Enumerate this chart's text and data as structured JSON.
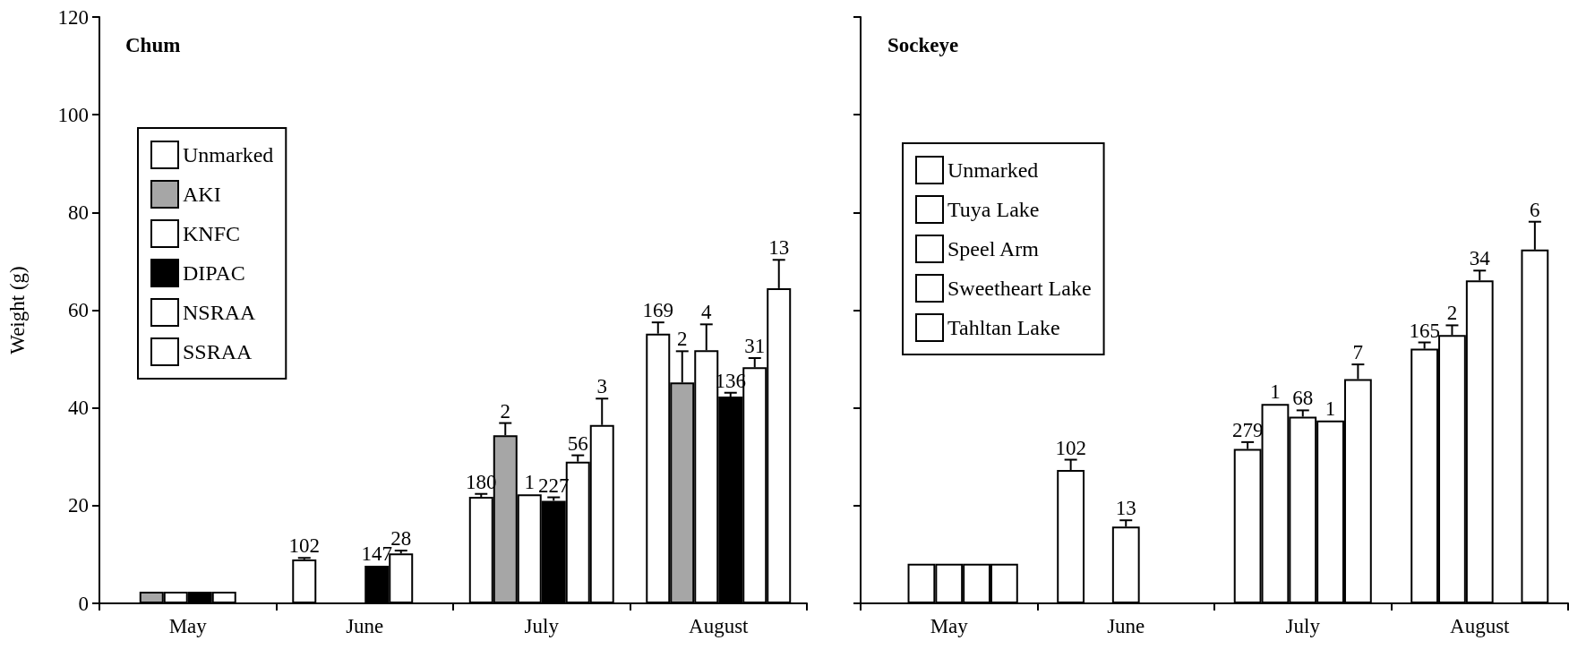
{
  "chart_data": [
    {
      "type": "bar",
      "title": "Chum",
      "ylabel": "Weight (g)",
      "categories": [
        "May",
        "June",
        "July",
        "August"
      ],
      "ylim": [
        0,
        120
      ],
      "yticks": [
        0,
        20,
        40,
        60,
        80,
        100,
        120
      ],
      "grid": false,
      "legend": "top left",
      "series": [
        {
          "name": "Unmarked",
          "color": "#ffffff",
          "values": [
            null,
            9.0,
            21.8,
            55.2
          ],
          "errors": [
            null,
            0.3,
            0.6,
            2.3
          ]
        },
        {
          "name": "AKI",
          "color": "#a6a6a6",
          "values": [
            2.4,
            null,
            34.4,
            45.2
          ],
          "errors": [
            null,
            null,
            2.5,
            6.4
          ]
        },
        {
          "name": "KNFC",
          "color": "#ffffff",
          "values": [
            2.4,
            null,
            22.3,
            51.8
          ],
          "errors": [
            null,
            null,
            null,
            5.3
          ]
        },
        {
          "name": "DIPAC",
          "color": "#000000",
          "values": [
            2.4,
            7.7,
            21.0,
            42.3
          ],
          "errors": [
            null,
            null,
            0.7,
            0.8
          ]
        },
        {
          "name": "NSRAA",
          "color": "#ffffff",
          "values": [
            2.4,
            10.2,
            29.0,
            48.3
          ],
          "errors": [
            null,
            0.6,
            1.3,
            1.9
          ]
        },
        {
          "name": "SSRAA",
          "color": "#ffffff",
          "values": [
            null,
            null,
            36.5,
            64.5
          ],
          "errors": [
            null,
            null,
            5.4,
            5.8
          ]
        }
      ],
      "annotations": [
        {
          "text": "102",
          "y": 9.0
        },
        {
          "text": "147",
          "y": 7.7
        },
        {
          "text": "28",
          "y": 10.2
        },
        {
          "text": "180",
          "y": 21.8
        },
        {
          "text": "2",
          "y": 34.4
        },
        {
          "text": "1",
          "y": 22.3
        },
        {
          "text": "227",
          "y": 21.0
        },
        {
          "text": "56",
          "y": 29.0
        },
        {
          "text": "3",
          "y": 36.5
        },
        {
          "text": "169",
          "y": 55.2
        },
        {
          "text": "2",
          "y": 45.2
        },
        {
          "text": "4",
          "y": 51.8
        },
        {
          "text": "136",
          "y": 42.3
        },
        {
          "text": "31",
          "y": 48.3
        },
        {
          "text": "13",
          "y": 64.5
        }
      ]
    },
    {
      "type": "bar",
      "title": "Sockeye",
      "categories": [
        "May",
        "June",
        "July",
        "August"
      ],
      "ylim": [
        0,
        120
      ],
      "yticks": [
        0,
        20,
        40,
        60,
        80,
        100,
        120
      ],
      "tick_labels": "x",
      "grid": false,
      "legend": "top left",
      "series": [
        {
          "name": "Unmarked",
          "color": "#ffffff",
          "values": [
            null,
            27.3,
            31.6,
            52.1
          ],
          "errors": [
            null,
            2.1,
            1.4,
            1.3
          ]
        },
        {
          "name": "Tuya Lake",
          "color": "#ffffff",
          "values": [
            8.1,
            null,
            40.8,
            54.9
          ],
          "errors": [
            null,
            null,
            null,
            2.0
          ]
        },
        {
          "name": "Speel Arm",
          "color": "#ffffff",
          "values": [
            8.1,
            15.7,
            38.2,
            66.1
          ],
          "errors": [
            null,
            1.3,
            1.3,
            2.0
          ]
        },
        {
          "name": "Sweetheart Lake",
          "color": "#ffffff",
          "values": [
            8.1,
            null,
            37.4,
            null
          ],
          "errors": [
            null,
            null,
            null,
            null
          ]
        },
        {
          "name": "Tahltan Lake",
          "color": "#ffffff",
          "values": [
            8.1,
            null,
            45.9,
            72.4
          ],
          "errors": [
            null,
            null,
            3.0,
            5.7
          ]
        }
      ],
      "annotations": [
        {
          "text": "102",
          "y": 27.3
        },
        {
          "text": "13",
          "y": 15.7
        },
        {
          "text": "279",
          "y": 31.6
        },
        {
          "text": "1",
          "y": 37.4
        },
        {
          "text": "68",
          "y": 38.2
        },
        {
          "text": "1",
          "y": 40.8
        },
        {
          "text": "7",
          "y": 45.9
        },
        {
          "text": "165",
          "y": 52.1
        },
        {
          "text": "2",
          "y": 54.9
        },
        {
          "text": "34",
          "y": 66.1
        },
        {
          "text": "6",
          "y": 72.4
        }
      ]
    }
  ]
}
